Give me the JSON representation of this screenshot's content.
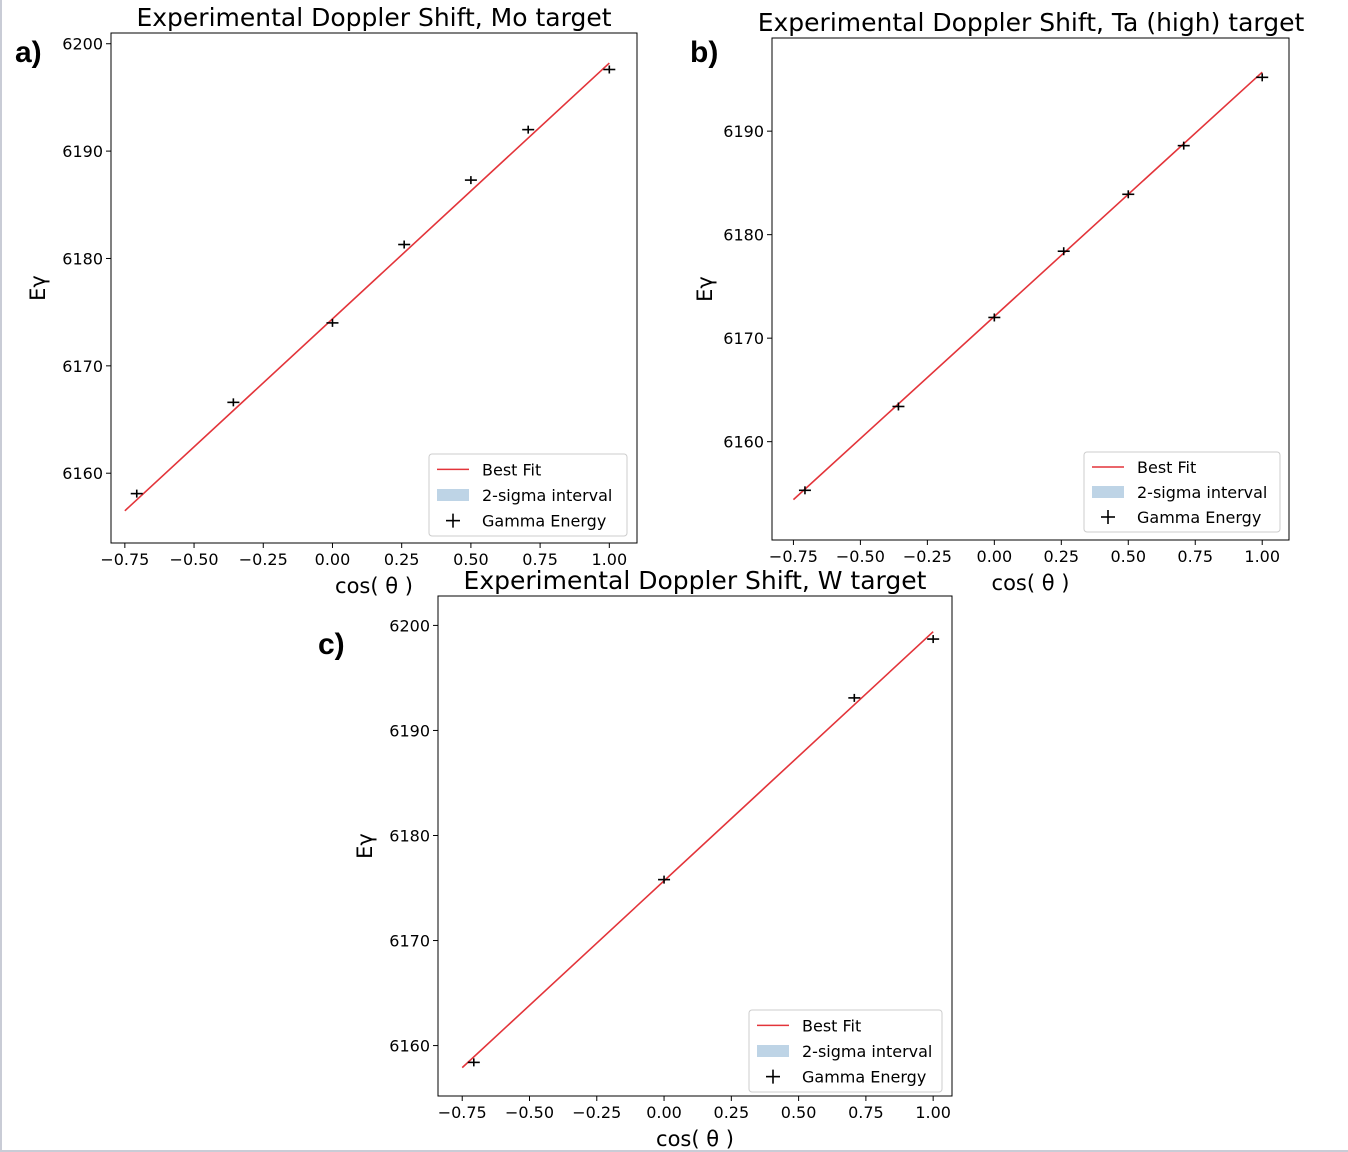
{
  "chart_data": [
    {
      "type": "scatter",
      "panel": "a)",
      "title": "Experimental Doppler Shift, Mo target",
      "xlabel": "cos( θ )",
      "ylabel": "Eγ",
      "xlim": [
        -0.8,
        1.1
      ],
      "ylim": [
        6153.5,
        6201
      ],
      "xticks": [
        "−0.75",
        "−0.50",
        "−0.25",
        "0.00",
        "0.25",
        "0.50",
        "0.75",
        "1.00"
      ],
      "yticks": [
        "6160",
        "6170",
        "6180",
        "6190",
        "6200"
      ],
      "grid": false,
      "legend_position": "lower right",
      "legend": [
        "Best Fit",
        "2-sigma interval",
        "Gamma Energy"
      ],
      "fit": {
        "x": [
          -0.75,
          1.0
        ],
        "y": [
          6156.5,
          6198.2
        ],
        "band_halfwidth": 1.1
      },
      "points": [
        {
          "x": -0.707,
          "y": 6158.1
        },
        {
          "x": -0.358,
          "y": 6166.6
        },
        {
          "x": 0.0,
          "y": 6174.0
        },
        {
          "x": 0.259,
          "y": 6181.3
        },
        {
          "x": 0.5,
          "y": 6187.3
        },
        {
          "x": 0.707,
          "y": 6192.0
        },
        {
          "x": 1.0,
          "y": 6197.6
        }
      ]
    },
    {
      "type": "scatter",
      "panel": "b)",
      "title": "Experimental Doppler Shift, Ta (high) target",
      "xlabel": "cos( θ )",
      "ylabel": "Eγ",
      "xlim": [
        -0.83,
        1.1
      ],
      "ylim": [
        6150.5,
        6199
      ],
      "xticks": [
        "−0.75",
        "−0.50",
        "−0.25",
        "0.00",
        "0.25",
        "0.50",
        "0.75",
        "1.00"
      ],
      "yticks": [
        "6160",
        "6170",
        "6180",
        "6190"
      ],
      "grid": false,
      "legend_position": "lower right",
      "legend": [
        "Best Fit",
        "2-sigma interval",
        "Gamma Energy"
      ],
      "fit": {
        "x": [
          -0.75,
          1.0
        ],
        "y": [
          6154.4,
          6195.7
        ],
        "band_halfwidth": 1.1
      },
      "points": [
        {
          "x": -0.707,
          "y": 6155.3
        },
        {
          "x": -0.358,
          "y": 6163.4
        },
        {
          "x": 0.0,
          "y": 6172.0
        },
        {
          "x": 0.259,
          "y": 6178.4
        },
        {
          "x": 0.5,
          "y": 6183.9
        },
        {
          "x": 0.707,
          "y": 6188.6
        },
        {
          "x": 1.0,
          "y": 6195.2
        }
      ]
    },
    {
      "type": "scatter",
      "panel": "c)",
      "title": "Experimental Doppler Shift, W target",
      "xlabel": "cos( θ )",
      "ylabel": "Eγ",
      "xlim": [
        -0.84,
        1.07
      ],
      "ylim": [
        6155.2,
        6202.8
      ],
      "xticks": [
        "−0.75",
        "−0.50",
        "−0.25",
        "0.00",
        "0.25",
        "0.50",
        "0.75",
        "1.00"
      ],
      "yticks": [
        "6160",
        "6170",
        "6180",
        "6190",
        "6200"
      ],
      "grid": false,
      "legend_position": "lower right",
      "legend": [
        "Best Fit",
        "2-sigma interval",
        "Gamma Energy"
      ],
      "fit": {
        "x": [
          -0.75,
          1.0
        ],
        "y": [
          6157.9,
          6199.4
        ],
        "band_halfwidth": 1.1
      },
      "points": [
        {
          "x": -0.707,
          "y": 6158.4
        },
        {
          "x": 0.0,
          "y": 6175.8
        },
        {
          "x": 0.707,
          "y": 6193.1
        },
        {
          "x": 1.0,
          "y": 6198.7
        }
      ]
    }
  ],
  "colors": {
    "fit_line": "#e3343a",
    "band": "#bed4e6",
    "marker": "#000000",
    "axes": "#000000",
    "legend_border": "#cccccc"
  }
}
